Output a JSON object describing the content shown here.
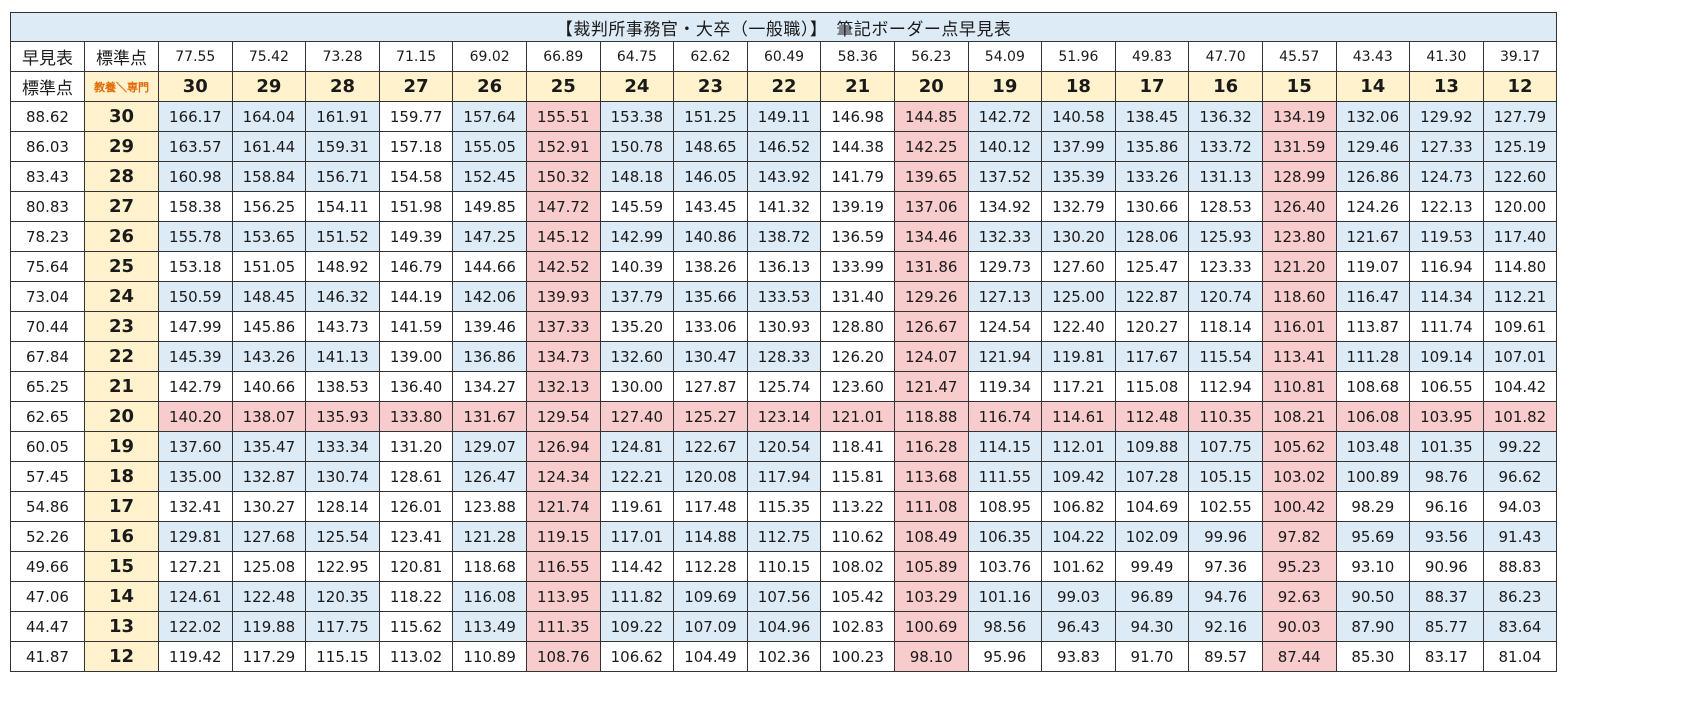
{
  "title": "【裁判所事務官・大卒（一般職）】　筆記ボーダー点早見表",
  "corner": {
    "top_left": "早見表",
    "top_right": "標準点",
    "bottom_left": "標準点",
    "bottom_right": "教養＼専門"
  },
  "column_standard_scores": [
    "77.55",
    "75.42",
    "73.28",
    "71.15",
    "69.02",
    "66.89",
    "64.75",
    "62.62",
    "60.49",
    "58.36",
    "56.23",
    "54.09",
    "51.96",
    "49.83",
    "47.70",
    "45.57",
    "43.43",
    "41.30",
    "39.17"
  ],
  "column_raw_scores": [
    "30",
    "29",
    "28",
    "27",
    "26",
    "25",
    "24",
    "23",
    "22",
    "21",
    "20",
    "19",
    "18",
    "17",
    "16",
    "15",
    "14",
    "13",
    "12"
  ],
  "rows": [
    {
      "std": "88.62",
      "raw": "30",
      "values": [
        "166.17",
        "164.04",
        "161.91",
        "159.77",
        "157.64",
        "155.51",
        "153.38",
        "151.25",
        "149.11",
        "146.98",
        "144.85",
        "142.72",
        "140.58",
        "138.45",
        "136.32",
        "134.19",
        "132.06",
        "129.92",
        "127.79"
      ]
    },
    {
      "std": "86.03",
      "raw": "29",
      "values": [
        "163.57",
        "161.44",
        "159.31",
        "157.18",
        "155.05",
        "152.91",
        "150.78",
        "148.65",
        "146.52",
        "144.38",
        "142.25",
        "140.12",
        "137.99",
        "135.86",
        "133.72",
        "131.59",
        "129.46",
        "127.33",
        "125.19"
      ]
    },
    {
      "std": "83.43",
      "raw": "28",
      "values": [
        "160.98",
        "158.84",
        "156.71",
        "154.58",
        "152.45",
        "150.32",
        "148.18",
        "146.05",
        "143.92",
        "141.79",
        "139.65",
        "137.52",
        "135.39",
        "133.26",
        "131.13",
        "128.99",
        "126.86",
        "124.73",
        "122.60"
      ]
    },
    {
      "std": "80.83",
      "raw": "27",
      "values": [
        "158.38",
        "156.25",
        "154.11",
        "151.98",
        "149.85",
        "147.72",
        "145.59",
        "143.45",
        "141.32",
        "139.19",
        "137.06",
        "134.92",
        "132.79",
        "130.66",
        "128.53",
        "126.40",
        "124.26",
        "122.13",
        "120.00"
      ]
    },
    {
      "std": "78.23",
      "raw": "26",
      "values": [
        "155.78",
        "153.65",
        "151.52",
        "149.39",
        "147.25",
        "145.12",
        "142.99",
        "140.86",
        "138.72",
        "136.59",
        "134.46",
        "132.33",
        "130.20",
        "128.06",
        "125.93",
        "123.80",
        "121.67",
        "119.53",
        "117.40"
      ]
    },
    {
      "std": "75.64",
      "raw": "25",
      "values": [
        "153.18",
        "151.05",
        "148.92",
        "146.79",
        "144.66",
        "142.52",
        "140.39",
        "138.26",
        "136.13",
        "133.99",
        "131.86",
        "129.73",
        "127.60",
        "125.47",
        "123.33",
        "121.20",
        "119.07",
        "116.94",
        "114.80"
      ]
    },
    {
      "std": "73.04",
      "raw": "24",
      "values": [
        "150.59",
        "148.45",
        "146.32",
        "144.19",
        "142.06",
        "139.93",
        "137.79",
        "135.66",
        "133.53",
        "131.40",
        "129.26",
        "127.13",
        "125.00",
        "122.87",
        "120.74",
        "118.60",
        "116.47",
        "114.34",
        "112.21"
      ]
    },
    {
      "std": "70.44",
      "raw": "23",
      "values": [
        "147.99",
        "145.86",
        "143.73",
        "141.59",
        "139.46",
        "137.33",
        "135.20",
        "133.06",
        "130.93",
        "128.80",
        "126.67",
        "124.54",
        "122.40",
        "120.27",
        "118.14",
        "116.01",
        "113.87",
        "111.74",
        "109.61"
      ]
    },
    {
      "std": "67.84",
      "raw": "22",
      "values": [
        "145.39",
        "143.26",
        "141.13",
        "139.00",
        "136.86",
        "134.73",
        "132.60",
        "130.47",
        "128.33",
        "126.20",
        "124.07",
        "121.94",
        "119.81",
        "117.67",
        "115.54",
        "113.41",
        "111.28",
        "109.14",
        "107.01"
      ]
    },
    {
      "std": "65.25",
      "raw": "21",
      "values": [
        "142.79",
        "140.66",
        "138.53",
        "136.40",
        "134.27",
        "132.13",
        "130.00",
        "127.87",
        "125.74",
        "123.60",
        "121.47",
        "119.34",
        "117.21",
        "115.08",
        "112.94",
        "110.81",
        "108.68",
        "106.55",
        "104.42"
      ]
    },
    {
      "std": "62.65",
      "raw": "20",
      "values": [
        "140.20",
        "138.07",
        "135.93",
        "133.80",
        "131.67",
        "129.54",
        "127.40",
        "125.27",
        "123.14",
        "121.01",
        "118.88",
        "116.74",
        "114.61",
        "112.48",
        "110.35",
        "108.21",
        "106.08",
        "103.95",
        "101.82"
      ]
    },
    {
      "std": "60.05",
      "raw": "19",
      "values": [
        "137.60",
        "135.47",
        "133.34",
        "131.20",
        "129.07",
        "126.94",
        "124.81",
        "122.67",
        "120.54",
        "118.41",
        "116.28",
        "114.15",
        "112.01",
        "109.88",
        "107.75",
        "105.62",
        "103.48",
        "101.35",
        "99.22"
      ]
    },
    {
      "std": "57.45",
      "raw": "18",
      "values": [
        "135.00",
        "132.87",
        "130.74",
        "128.61",
        "126.47",
        "124.34",
        "122.21",
        "120.08",
        "117.94",
        "115.81",
        "113.68",
        "111.55",
        "109.42",
        "107.28",
        "105.15",
        "103.02",
        "100.89",
        "98.76",
        "96.62"
      ]
    },
    {
      "std": "54.86",
      "raw": "17",
      "values": [
        "132.41",
        "130.27",
        "128.14",
        "126.01",
        "123.88",
        "121.74",
        "119.61",
        "117.48",
        "115.35",
        "113.22",
        "111.08",
        "108.95",
        "106.82",
        "104.69",
        "102.55",
        "100.42",
        "98.29",
        "96.16",
        "94.03"
      ]
    },
    {
      "std": "52.26",
      "raw": "16",
      "values": [
        "129.81",
        "127.68",
        "125.54",
        "123.41",
        "121.28",
        "119.15",
        "117.01",
        "114.88",
        "112.75",
        "110.62",
        "108.49",
        "106.35",
        "104.22",
        "102.09",
        "99.96",
        "97.82",
        "95.69",
        "93.56",
        "91.43"
      ]
    },
    {
      "std": "49.66",
      "raw": "15",
      "values": [
        "127.21",
        "125.08",
        "122.95",
        "120.81",
        "118.68",
        "116.55",
        "114.42",
        "112.28",
        "110.15",
        "108.02",
        "105.89",
        "103.76",
        "101.62",
        "99.49",
        "97.36",
        "95.23",
        "93.10",
        "90.96",
        "88.83"
      ]
    },
    {
      "std": "47.06",
      "raw": "14",
      "values": [
        "124.61",
        "122.48",
        "120.35",
        "118.22",
        "116.08",
        "113.95",
        "111.82",
        "109.69",
        "107.56",
        "105.42",
        "103.29",
        "101.16",
        "99.03",
        "96.89",
        "94.76",
        "92.63",
        "90.50",
        "88.37",
        "86.23"
      ]
    },
    {
      "std": "44.47",
      "raw": "13",
      "values": [
        "122.02",
        "119.88",
        "117.75",
        "115.62",
        "113.49",
        "111.35",
        "109.22",
        "107.09",
        "104.96",
        "102.83",
        "100.69",
        "98.56",
        "96.43",
        "94.30",
        "92.16",
        "90.03",
        "87.90",
        "85.77",
        "83.64"
      ]
    },
    {
      "std": "41.87",
      "raw": "12",
      "values": [
        "119.42",
        "117.29",
        "115.15",
        "113.02",
        "110.89",
        "108.76",
        "106.62",
        "104.49",
        "102.36",
        "100.23",
        "98.10",
        "95.96",
        "93.83",
        "91.70",
        "89.57",
        "87.44",
        "85.30",
        "83.17",
        "81.04"
      ]
    }
  ],
  "colors": {
    "title_bg": "#ddebf7",
    "blue": "#ddebf7",
    "pink": "#f8cbcc",
    "yellow": "#fff2cc",
    "orange_text": "#e26b0a",
    "border": "#333333"
  },
  "highlight": {
    "pink_columns": [
      "25",
      "20",
      "15"
    ],
    "pink_row": "20",
    "blue_rows": [
      "30",
      "29",
      "28",
      "26",
      "24",
      "22",
      "19",
      "18",
      "16",
      "14",
      "13"
    ],
    "blue_excluded_columns_in_blue_rows": [
      "27",
      "21"
    ]
  }
}
